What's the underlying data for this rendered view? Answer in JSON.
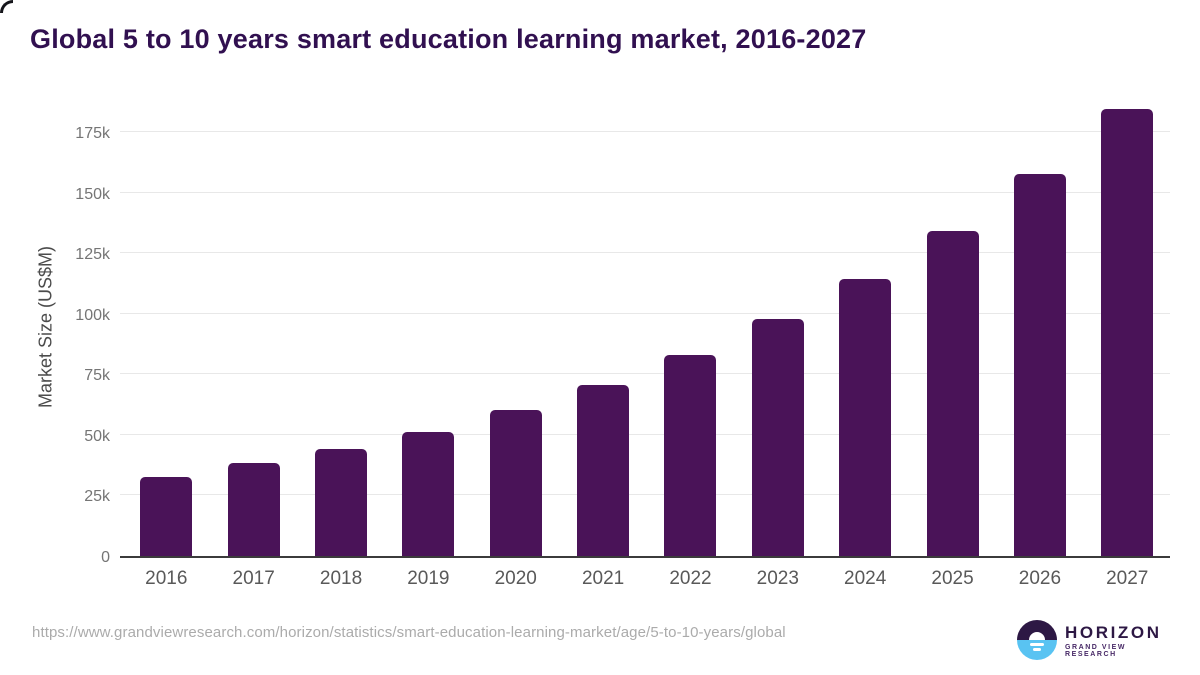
{
  "chart_data": {
    "type": "bar",
    "title": "Global 5 to 10 years smart education learning market, 2016-2027",
    "xlabel": "",
    "ylabel": "Market Size (US$M)",
    "categories": [
      "2016",
      "2017",
      "2018",
      "2019",
      "2020",
      "2021",
      "2022",
      "2023",
      "2024",
      "2025",
      "2026",
      "2027"
    ],
    "values": [
      32800,
      38300,
      44000,
      51000,
      60200,
      70500,
      82800,
      97800,
      114500,
      134300,
      157800,
      184400
    ],
    "yticks": [
      {
        "value": 0,
        "label": "0"
      },
      {
        "value": 25000,
        "label": "25k"
      },
      {
        "value": 50000,
        "label": "50k"
      },
      {
        "value": 75000,
        "label": "75k"
      },
      {
        "value": 100000,
        "label": "100k"
      },
      {
        "value": 125000,
        "label": "125k"
      },
      {
        "value": 150000,
        "label": "150k"
      },
      {
        "value": 175000,
        "label": "175k"
      }
    ],
    "ylim": [
      0,
      191000
    ],
    "grid": true,
    "legend": false,
    "bar_color": "#4a1358",
    "colors": {
      "title": "#311050",
      "gridline": "#e8e8e8",
      "axis_line": "#3b3b3b",
      "y_tick_label": "#757575",
      "x_tick_label": "#595959"
    }
  },
  "footer": {
    "source_url": "https://www.grandviewresearch.com/horizon/statistics/smart-education-learning-market/age/5-to-10-years/global",
    "logo_title": "HORIZON",
    "logo_subtitle": "GRAND VIEW RESEARCH",
    "logo_colors": {
      "dark": "#2d1844",
      "blue": "#59c3f2"
    }
  }
}
